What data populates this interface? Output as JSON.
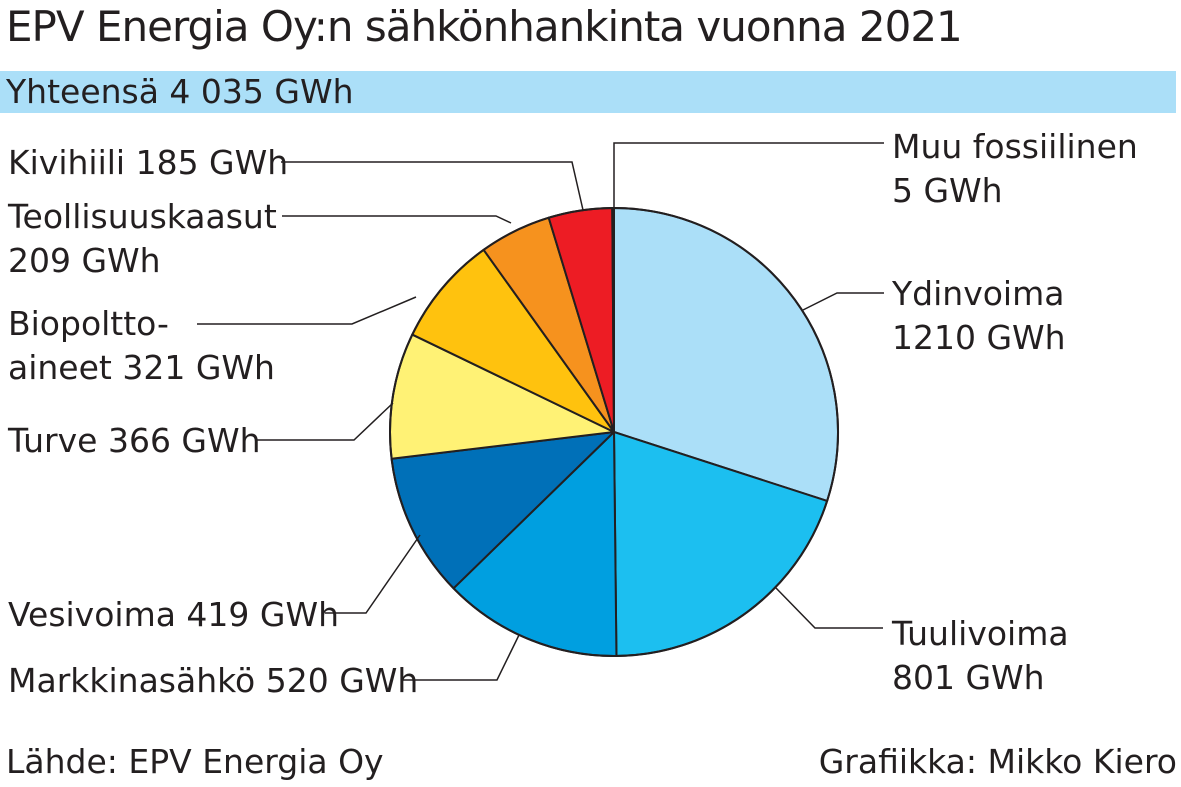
{
  "title": "EPV Energia Oy:n sähkönhankinta vuonna 2021",
  "subtitle": "Yhteensä 4 035 GWh",
  "source": "Lähde: EPV Energia Oy",
  "credit": "Grafiikka: Mikko Kiero",
  "chart_data": {
    "type": "pie",
    "title": "EPV Energia Oy:n sähkönhankinta vuonna 2021",
    "subtitle": "Yhteensä 4 035 GWh",
    "unit": "GWh",
    "total": 4035,
    "slices": [
      {
        "name": "Ydinvoima",
        "value": 1210,
        "label_lines": [
          "Ydinvoima",
          "1210 GWh"
        ],
        "color": "#abdff8"
      },
      {
        "name": "Tuulivoima",
        "value": 801,
        "label_lines": [
          "Tuulivoima",
          "801 GWh"
        ],
        "color": "#1cbff0"
      },
      {
        "name": "Markkinasähkö",
        "value": 520,
        "label_lines": [
          "Markkinasähkö 520 GWh"
        ],
        "color": "#009fe0"
      },
      {
        "name": "Vesivoima",
        "value": 419,
        "label_lines": [
          "Vesivoima 419 GWh"
        ],
        "color": "#0070b8"
      },
      {
        "name": "Turve",
        "value": 366,
        "label_lines": [
          "Turve 366 GWh"
        ],
        "color": "#fff275"
      },
      {
        "name": "Biopolttoaineet",
        "value": 321,
        "label_lines": [
          "Biopoltto-",
          "aineet 321 GWh"
        ],
        "color": "#ffc20e"
      },
      {
        "name": "Teollisuuskaasut",
        "value": 209,
        "label_lines": [
          "Teollisuuskaasut",
          "209 GWh"
        ],
        "color": "#f6921e"
      },
      {
        "name": "Kivihiili",
        "value": 185,
        "label_lines": [
          "Kivihiili 185 GWh"
        ],
        "color": "#ed1c24"
      },
      {
        "name": "Muu fossiilinen",
        "value": 5,
        "label_lines": [
          "Muu fossiilinen",
          "5 GWh"
        ],
        "color": "#231f20"
      }
    ]
  }
}
